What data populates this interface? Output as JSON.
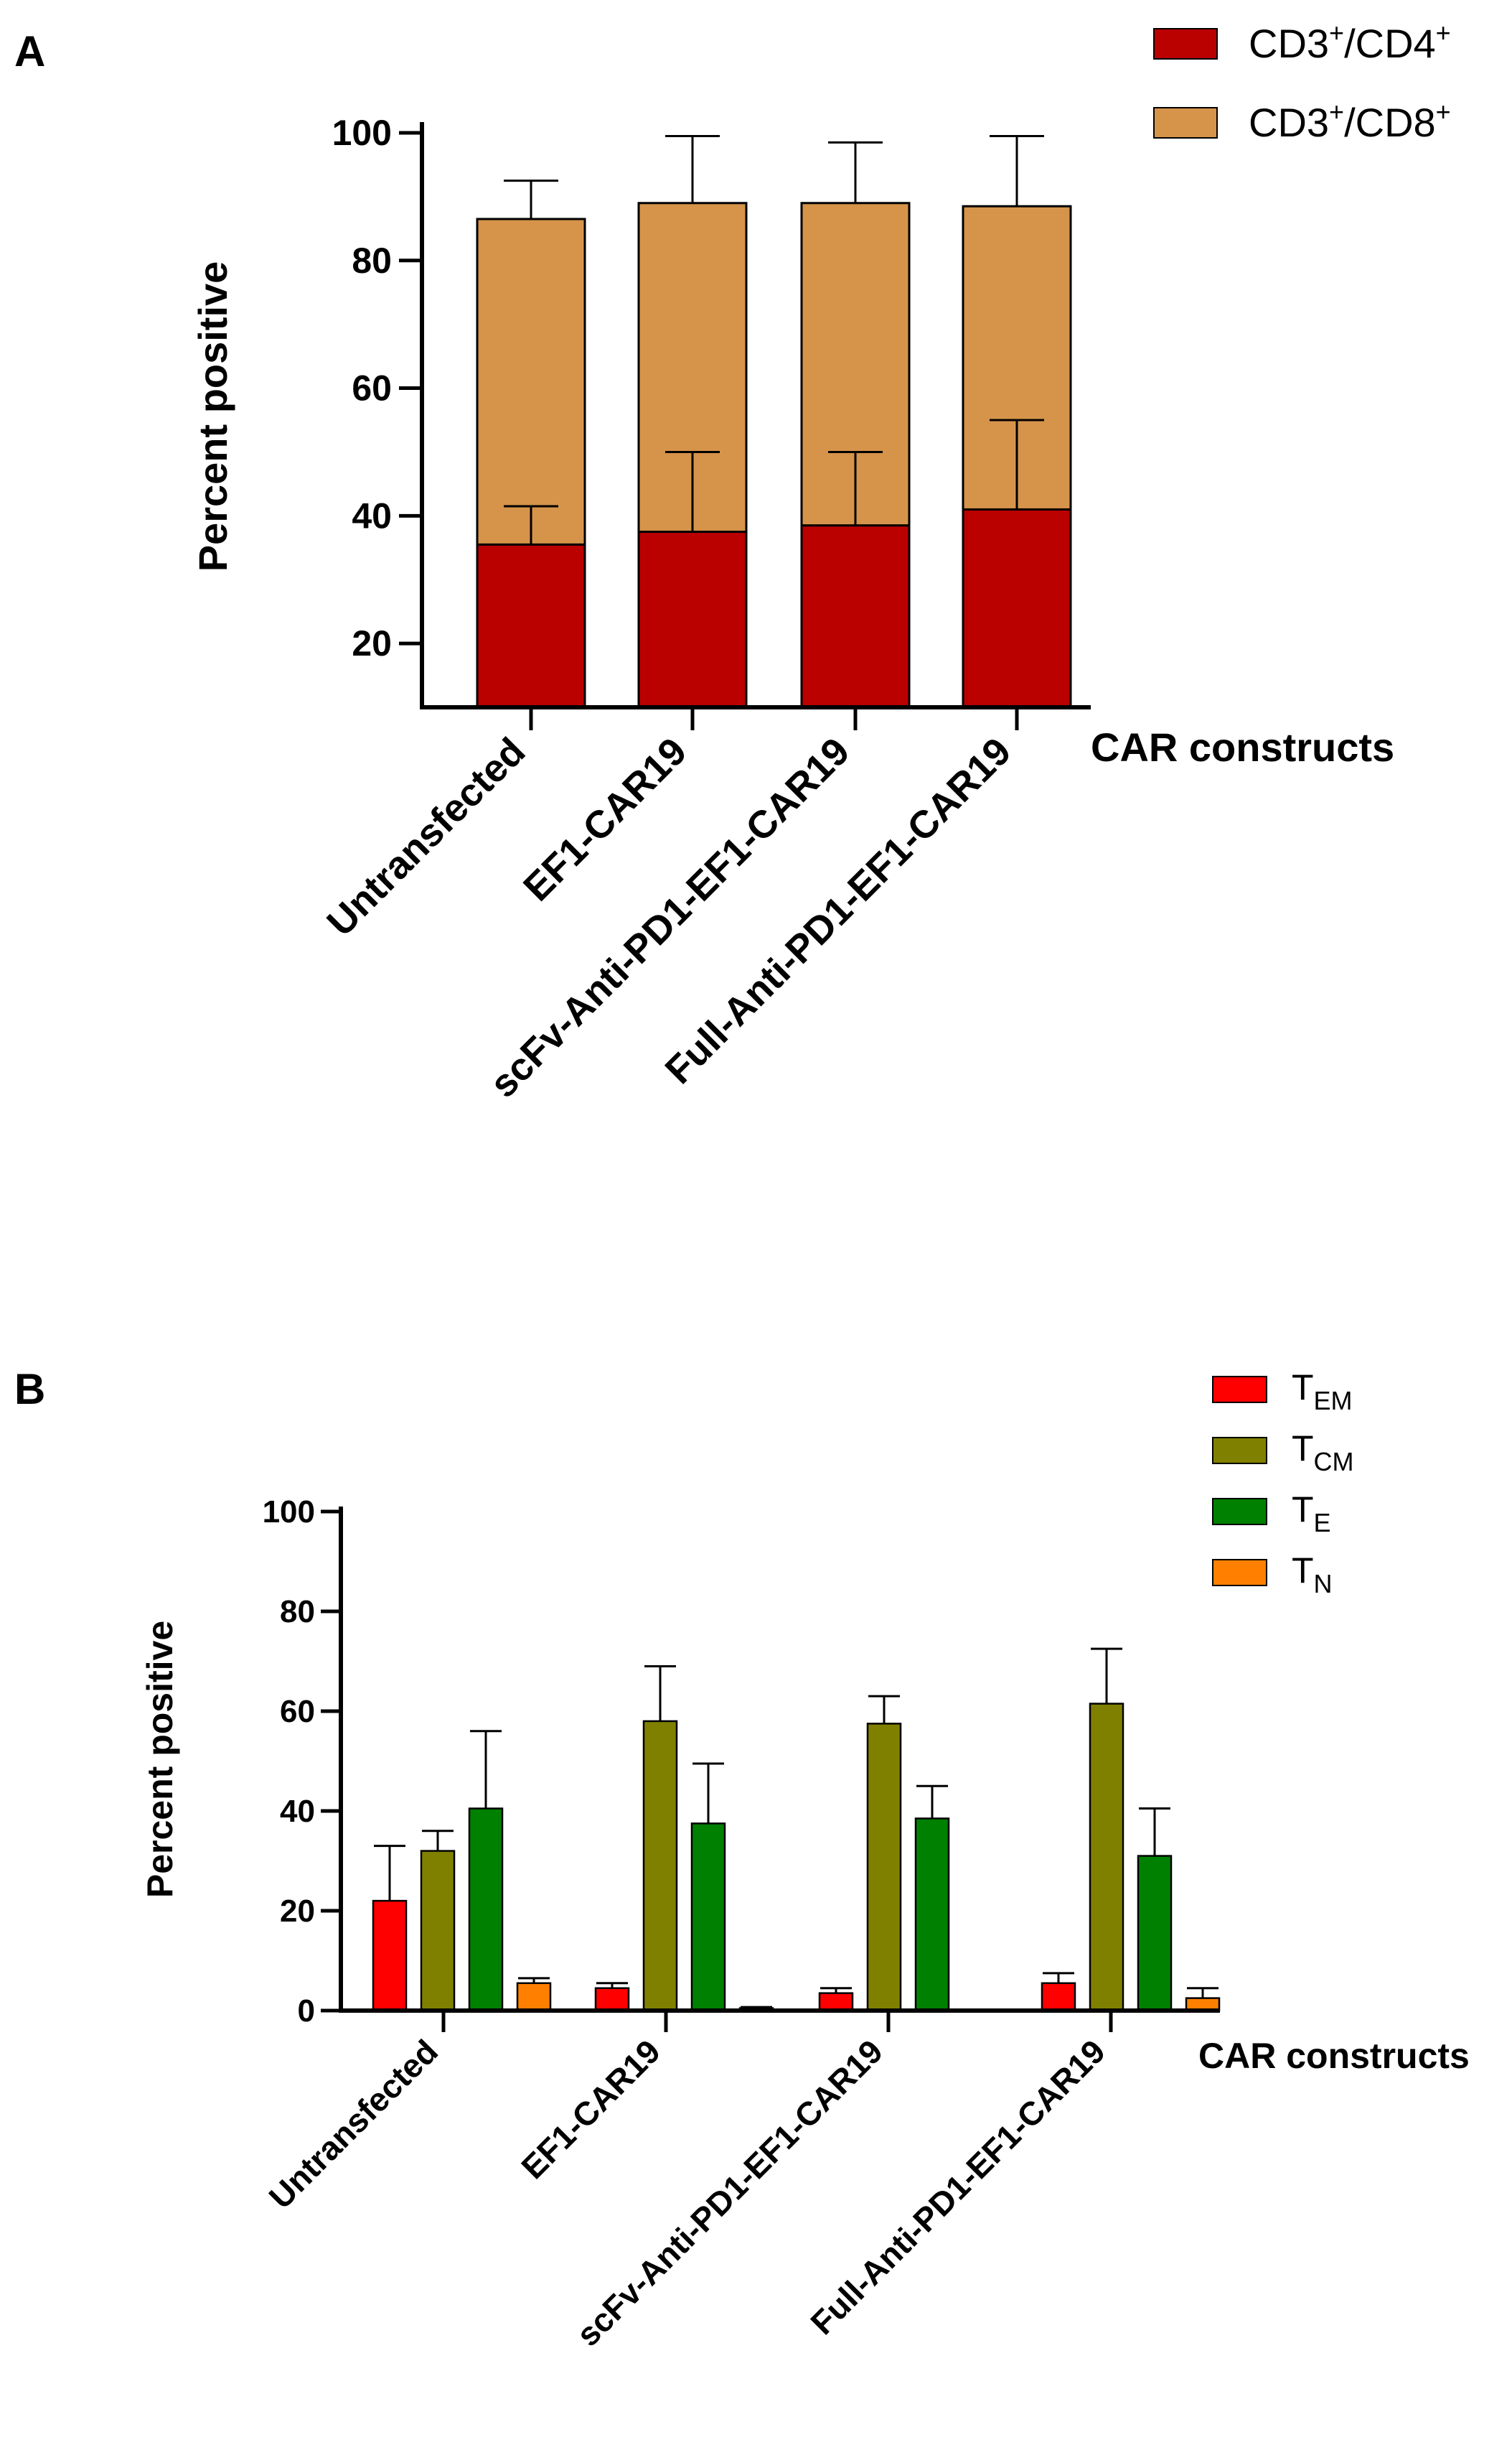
{
  "chart_data": [
    {
      "panel": "A",
      "type": "bar",
      "stacked": true,
      "categories": [
        "Untransfected",
        "EF1-CAR19",
        "scFv-Anti-PD1-EF1-CAR19",
        "Full-Anti-PD1-EF1-CAR19"
      ],
      "series": [
        {
          "name": "CD3+/CD4+",
          "name_parts": [
            "CD3",
            "+",
            "/CD4",
            "+"
          ],
          "color": "#bb0000",
          "values": [
            35.5,
            37.5,
            38.5,
            41.0
          ],
          "errors": [
            6.0,
            12.5,
            11.5,
            14.0
          ]
        },
        {
          "name": "CD3+/CD8+",
          "name_parts": [
            "CD3",
            "+",
            "/CD8",
            "+"
          ],
          "color": "#d6944a",
          "values": [
            51.0,
            51.5,
            50.5,
            47.5
          ],
          "errors": [
            6.0,
            10.5,
            9.5,
            11.0
          ]
        }
      ],
      "xlabel": "CAR constructs",
      "ylabel": "Percent positive",
      "ylim": [
        10,
        100
      ],
      "yticks": [
        20,
        40,
        60,
        80,
        100
      ],
      "legend_position": "top-right"
    },
    {
      "panel": "B",
      "type": "bar",
      "stacked": false,
      "categories": [
        "Untransfected",
        "EF1-CAR19",
        "scFv-Anti-PD1-EF1-CAR19",
        "Full-Anti-PD1-EF1-CAR19"
      ],
      "series": [
        {
          "name": "TEM",
          "name_parts": [
            "T",
            "EM"
          ],
          "color": "#ff0000",
          "values": [
            22.0,
            4.5,
            3.5,
            5.5
          ],
          "errors": [
            11.0,
            1.0,
            1.0,
            2.0
          ]
        },
        {
          "name": "TCM",
          "name_parts": [
            "T",
            "CM"
          ],
          "color": "#808000",
          "values": [
            32.0,
            58.0,
            57.5,
            61.5
          ],
          "errors": [
            4.0,
            11.0,
            5.5,
            11.0
          ]
        },
        {
          "name": "TE",
          "name_parts": [
            "T",
            "E"
          ],
          "color": "#008000",
          "values": [
            40.5,
            37.5,
            38.5,
            31.0
          ],
          "errors": [
            15.5,
            12.0,
            6.5,
            9.5
          ]
        },
        {
          "name": "TN",
          "name_parts": [
            "T",
            "N"
          ],
          "color": "#ff8000",
          "values": [
            5.5,
            0.5,
            0.0,
            2.5
          ],
          "errors": [
            1.0,
            0.2,
            0.0,
            2.0
          ]
        }
      ],
      "xlabel": "CAR constructs",
      "ylabel": "Percent positive",
      "ylim": [
        0,
        100
      ],
      "yticks": [
        0,
        20,
        40,
        60,
        80,
        100
      ],
      "legend_position": "top-right"
    }
  ]
}
